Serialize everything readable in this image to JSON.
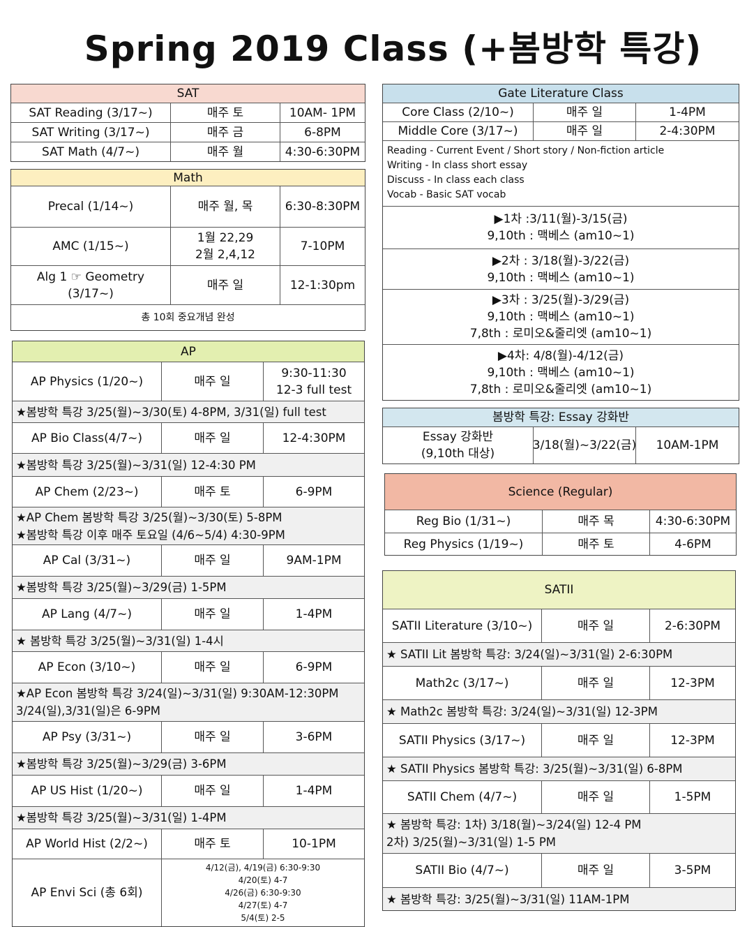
{
  "title": "Spring 2019 Class (+봄방학 특강)",
  "colors": {
    "sat": "#f8d9d0",
    "math": "#fdefc0",
    "ap": "#e3efb0",
    "gate": "#c8e0ec",
    "essay": "#d3e7ef",
    "science": "#f2b8a4",
    "satii": "#eef3c4",
    "note": "#f0f0f0"
  },
  "sections": {
    "sat": {
      "header": "SAT",
      "rows": [
        {
          "type": "class",
          "cells": [
            "SAT Reading (3/17~)",
            "매주 토",
            "10AM- 1PM"
          ]
        },
        {
          "type": "class",
          "cells": [
            "SAT Writing (3/17~)",
            "매주 금",
            "6-8PM"
          ]
        },
        {
          "type": "class",
          "cells": [
            "SAT Math (4/7~)",
            "매주 월",
            "4:30-6:30PM"
          ]
        }
      ]
    },
    "math": {
      "header": "Math",
      "rows": [
        {
          "type": "class",
          "cells": [
            "Precal (1/14~)",
            "매주 월, 목",
            "6:30-8:30PM"
          ]
        },
        {
          "type": "class",
          "cells": [
            "AMC (1/15~)",
            "1월 22,29\n2월 2,4,12",
            "7-10PM"
          ]
        },
        {
          "type": "class",
          "cells": [
            "Alg 1 ☞ Geometry\n(3/17~)",
            "매주 일",
            "12-1:30pm"
          ]
        },
        {
          "type": "plain",
          "cells": [
            "총 10회 중요개념 완성"
          ]
        }
      ]
    },
    "ap": {
      "header": "AP",
      "rows": [
        {
          "type": "class",
          "cells": [
            "AP Physics (1/20~)",
            "매주 일",
            "9:30-11:30\n12-3 full test"
          ]
        },
        {
          "type": "note",
          "cells": [
            "★봄방학 특강 3/25(월)~3/30(토) 4-8PM, 3/31(일) full test"
          ]
        },
        {
          "type": "class",
          "cells": [
            "AP Bio Class(4/7~)",
            "매주 일",
            "12-4:30PM"
          ]
        },
        {
          "type": "note",
          "cells": [
            "★봄방학 특강 3/25(월)~3/31(일) 12-4:30 PM"
          ]
        },
        {
          "type": "class",
          "cells": [
            "AP Chem (2/23~)",
            "매주 토",
            "6-9PM"
          ]
        },
        {
          "type": "note",
          "cells": [
            "★AP Chem 봄방학 특강 3/25(월)~3/30(토) 5-8PM\n★봄방학 특강 이후 매주 토요일 (4/6~5/4) 4:30-9PM"
          ]
        },
        {
          "type": "class",
          "cells": [
            "AP Cal (3/31~)",
            "매주 일",
            "9AM-1PM"
          ]
        },
        {
          "type": "note",
          "cells": [
            "★봄방학 특강 3/25(월)~3/29(금) 1-5PM"
          ]
        },
        {
          "type": "class",
          "cells": [
            "AP Lang (4/7~)",
            "매주 일",
            "1-4PM"
          ]
        },
        {
          "type": "note",
          "cells": [
            "★ 봄방학 특강 3/25(월)~3/31(일) 1-4시"
          ]
        },
        {
          "type": "class",
          "cells": [
            "AP Econ (3/10~)",
            "매주 일",
            "6-9PM"
          ]
        },
        {
          "type": "note",
          "cells": [
            "★AP Econ 봄방학 특강 3/24(일)~3/31(일) 9:30AM-12:30PM\n3/24(일),3/31(일)은 6-9PM"
          ]
        },
        {
          "type": "class",
          "cells": [
            "AP Psy (3/31~)",
            "매주 일",
            "3-6PM"
          ]
        },
        {
          "type": "note",
          "cells": [
            "★봄방학 특강 3/25(월)~3/29(금) 3-6PM"
          ]
        },
        {
          "type": "class",
          "cells": [
            "AP US Hist (1/20~)",
            "매주 일",
            "1-4PM"
          ]
        },
        {
          "type": "note",
          "cells": [
            "★봄방학 특강 3/25(월)~3/31(일) 1-4PM"
          ]
        },
        {
          "type": "class",
          "cells": [
            "AP  World Hist (2/2~)",
            "매주 토",
            "10-1PM"
          ]
        },
        {
          "type": "class2",
          "cells": [
            "AP Envi Sci (총 6회)",
            "4/12(금), 4/19(금) 6:30-9:30\n4/20(토) 4-7\n4/26(금) 6:30-9:30\n4/27(토) 4-7\n5/4(토) 2-5"
          ]
        }
      ]
    },
    "gate": {
      "header": "Gate Literature Class",
      "rows": [
        {
          "type": "class",
          "cells": [
            "Core Class (2/10~)",
            "매주 일",
            "1-4PM"
          ]
        },
        {
          "type": "class",
          "cells": [
            "Middle Core (3/17~)",
            "매주 일",
            "2-4:30PM"
          ]
        },
        {
          "type": "desc",
          "cells": [
            "Reading - Current Event  / Short story / Non-fiction article\nWriting - In class short essay\nDiscuss - In class each class\nVocab - Basic SAT vocab"
          ]
        },
        {
          "type": "session",
          "cells": [
            "▶1차 :3/11(월)-3/15(금)\n9,10th : 맥베스 (am10~1)"
          ]
        },
        {
          "type": "session",
          "cells": [
            "▶2차 : 3/18(월)-3/22(금)\n9,10th : 맥베스 (am10~1)"
          ]
        },
        {
          "type": "session",
          "cells": [
            "▶3차 : 3/25(월)-3/29(금)\n9,10th : 맥베스 (am10~1)\n7,8th : 로미오&줄리엣 (am10~1)"
          ]
        },
        {
          "type": "session",
          "cells": [
            "▶4차: 4/8(월)-4/12(금)\n9,10th : 맥베스 (am10~1)\n7,8th : 로미오&줄리엣 (am10~1)"
          ]
        }
      ]
    },
    "essay": {
      "header": "봄방학 특강: Essay 강화반",
      "rows": [
        {
          "type": "class",
          "cells": [
            "Essay 강화반\n(9,10th 대상)",
            "3/18(월)~3/22(금)",
            "10AM-1PM"
          ]
        }
      ]
    },
    "science": {
      "header": "Science (Regular)",
      "rows": [
        {
          "type": "class",
          "cells": [
            "Reg Bio (1/31~)",
            "매주 목",
            "4:30-6:30PM"
          ]
        },
        {
          "type": "class",
          "cells": [
            "Reg Physics (1/19~)",
            "매주 토",
            "4-6PM"
          ]
        }
      ]
    },
    "satii": {
      "header": "SATII",
      "rows": [
        {
          "type": "class",
          "cells": [
            "SATII Literature (3/10~)",
            "매주 일",
            "2-6:30PM"
          ]
        },
        {
          "type": "note",
          "cells": [
            "★ SATII Lit 봄방학 특강: 3/24(일)~3/31(일) 2-6:30PM"
          ]
        },
        {
          "type": "class",
          "cells": [
            "Math2c (3/17~)",
            "매주 일",
            "12-3PM"
          ]
        },
        {
          "type": "note",
          "cells": [
            "★ Math2c 봄방학 특강: 3/24(일)~3/31(일) 12-3PM"
          ]
        },
        {
          "type": "class",
          "cells": [
            "SATII Physics (3/17~)",
            "매주 일",
            "12-3PM"
          ]
        },
        {
          "type": "note",
          "cells": [
            "★ SATII Physics 봄방학 특강: 3/25(월)~3/31(일) 6-8PM"
          ]
        },
        {
          "type": "class",
          "cells": [
            "SATII Chem (4/7~)",
            "매주 일",
            "1-5PM"
          ]
        },
        {
          "type": "note",
          "cells": [
            "★ 봄방학 특강: 1차) 3/18(월)~3/24(일) 12-4 PM\n        2차) 3/25(월)~3/31(일) 1-5 PM"
          ]
        },
        {
          "type": "class",
          "cells": [
            "SATII Bio (4/7~)",
            "매주 일",
            "3-5PM"
          ]
        },
        {
          "type": "note",
          "cells": [
            "★ 봄방학 특강: 3/25(월)~3/31(일) 11AM-1PM"
          ]
        }
      ]
    }
  }
}
